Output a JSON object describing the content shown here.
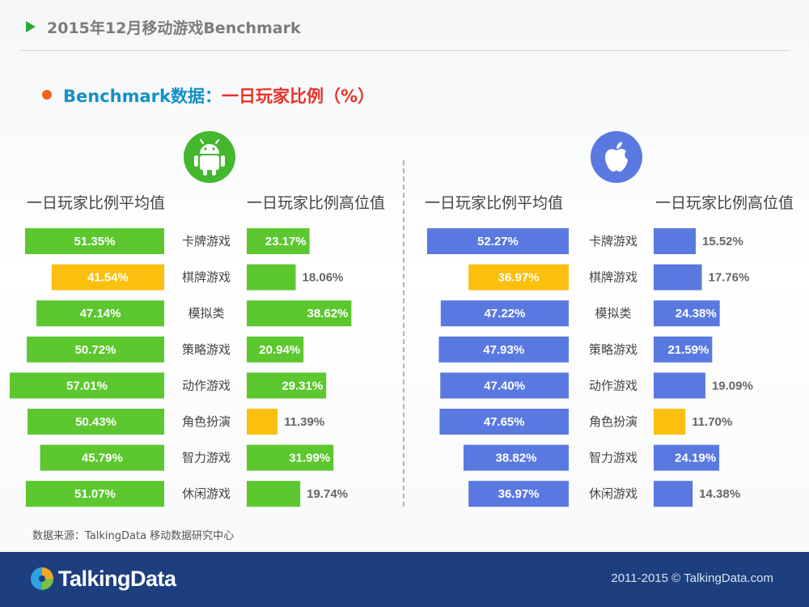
{
  "header": {
    "title": "2015年12月移动游戏Benchmark"
  },
  "subtitle": {
    "part1": "Benchmark数据：",
    "part2": "一日玩家比例（%）"
  },
  "android": {
    "icon": "android-icon",
    "avg_header": "一日玩家比例平均值",
    "high_header": "一日玩家比例高位值"
  },
  "ios": {
    "icon": "apple-icon",
    "avg_header": "一日玩家比例平均值",
    "high_header": "一日玩家比例高位值"
  },
  "colors": {
    "android": "#5cc72e",
    "ios": "#5a79e0",
    "highlight": "#fbbf0e"
  },
  "chart_data": [
    {
      "type": "bar",
      "platform": "Android",
      "categories": [
        "卡牌游戏",
        "棋牌游戏",
        "模拟类",
        "策略游戏",
        "动作游戏",
        "角色扮演",
        "智力游戏",
        "休闲游戏"
      ],
      "series": [
        {
          "name": "一日玩家比例平均值",
          "values": [
            51.35,
            41.54,
            47.14,
            50.72,
            57.01,
            50.43,
            45.79,
            51.07
          ],
          "labels": [
            "51.35%",
            "41.54%",
            "47.14%",
            "50.72%",
            "57.01%",
            "50.43%",
            "45.79%",
            "51.07%"
          ],
          "highlight_index": 1
        },
        {
          "name": "一日玩家比例高位值",
          "values": [
            23.17,
            18.06,
            38.62,
            20.94,
            29.31,
            11.39,
            31.99,
            19.74
          ],
          "labels": [
            "23.17%",
            "18.06%",
            "38.62%",
            "20.94%",
            "29.31%",
            "11.39%",
            "31.99%",
            "19.74%"
          ],
          "highlight_index": 5
        }
      ]
    },
    {
      "type": "bar",
      "platform": "iOS",
      "categories": [
        "卡牌游戏",
        "棋牌游戏",
        "模拟类",
        "策略游戏",
        "动作游戏",
        "角色扮演",
        "智力游戏",
        "休闲游戏"
      ],
      "series": [
        {
          "name": "一日玩家比例平均值",
          "values": [
            52.27,
            36.97,
            47.22,
            47.93,
            47.4,
            47.65,
            38.82,
            36.97
          ],
          "labels": [
            "52.27%",
            "36.97%",
            "47.22%",
            "47.93%",
            "47.40%",
            "47.65%",
            "38.82%",
            "36.97%"
          ],
          "highlight_index": 1
        },
        {
          "name": "一日玩家比例高位值",
          "values": [
            15.52,
            17.76,
            24.38,
            21.59,
            19.09,
            11.7,
            24.19,
            14.38
          ],
          "labels": [
            "15.52%",
            "17.76%",
            "24.38%",
            "21.59%",
            "19.09%",
            "11.70%",
            "24.19%",
            "14.38%"
          ],
          "highlight_index": 5
        }
      ]
    }
  ],
  "source": "数据来源：TalkingData 移动数据研究中心",
  "footer": {
    "logo_text": "TalkingData",
    "copyright": "2011-2015 © TalkingData.com"
  }
}
